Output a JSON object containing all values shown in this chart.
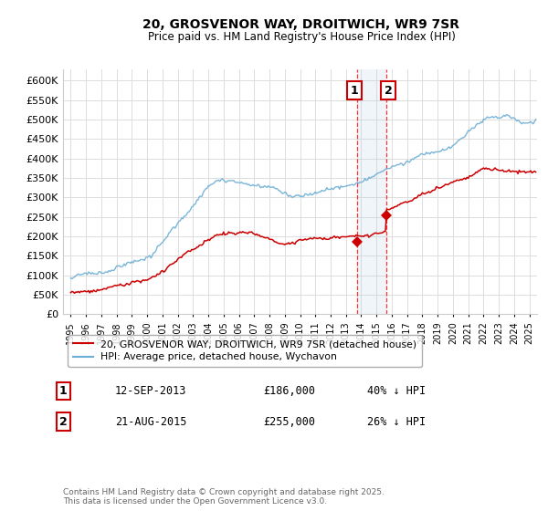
{
  "title": "20, GROSVENOR WAY, DROITWICH, WR9 7SR",
  "subtitle": "Price paid vs. HM Land Registry's House Price Index (HPI)",
  "ylim": [
    0,
    630000
  ],
  "yticks": [
    0,
    50000,
    100000,
    150000,
    200000,
    250000,
    300000,
    350000,
    400000,
    450000,
    500000,
    550000,
    600000
  ],
  "xlim_start": 1994.5,
  "xlim_end": 2025.5,
  "sale1_date": 2013.72,
  "sale1_price": 186000,
  "sale1_label": "1",
  "sale1_text": "12-SEP-2013",
  "sale1_amount": "£186,000",
  "sale1_hpi": "40% ↓ HPI",
  "sale2_date": 2015.63,
  "sale2_price": 255000,
  "sale2_label": "2",
  "sale2_text": "21-AUG-2015",
  "sale2_amount": "£255,000",
  "sale2_hpi": "26% ↓ HPI",
  "hpi_color": "#6baed6",
  "price_color": "#cc0000",
  "bg_color": "#ffffff",
  "grid_color": "#dddddd",
  "legend_label_price": "20, GROSVENOR WAY, DROITWICH, WR9 7SR (detached house)",
  "legend_label_hpi": "HPI: Average price, detached house, Wychavon",
  "footer": "Contains HM Land Registry data © Crown copyright and database right 2025.\nThis data is licensed under the Open Government Licence v3.0."
}
